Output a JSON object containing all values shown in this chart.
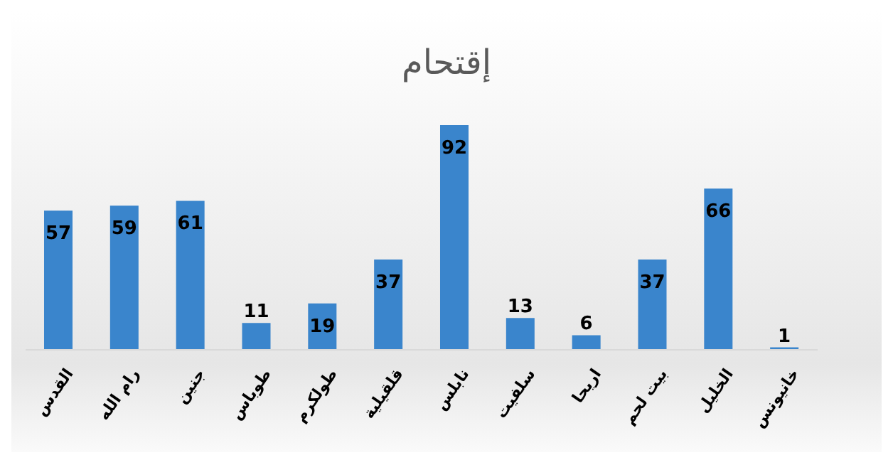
{
  "chart_data": {
    "type": "bar",
    "title": "إقتحام",
    "categories": [
      "القدس",
      "رام الله",
      "جنين",
      "طوباس",
      "طولكرم",
      "قلقيلية",
      "نابلس",
      "سلفيت",
      "اريحا",
      "بيت لحم",
      "الخليل",
      "خانيونس"
    ],
    "values": [
      57,
      59,
      61,
      11,
      19,
      37,
      92,
      13,
      6,
      37,
      66,
      1
    ],
    "color": "#3a85cc",
    "data_labels": true,
    "grid": false,
    "legend": false
  }
}
